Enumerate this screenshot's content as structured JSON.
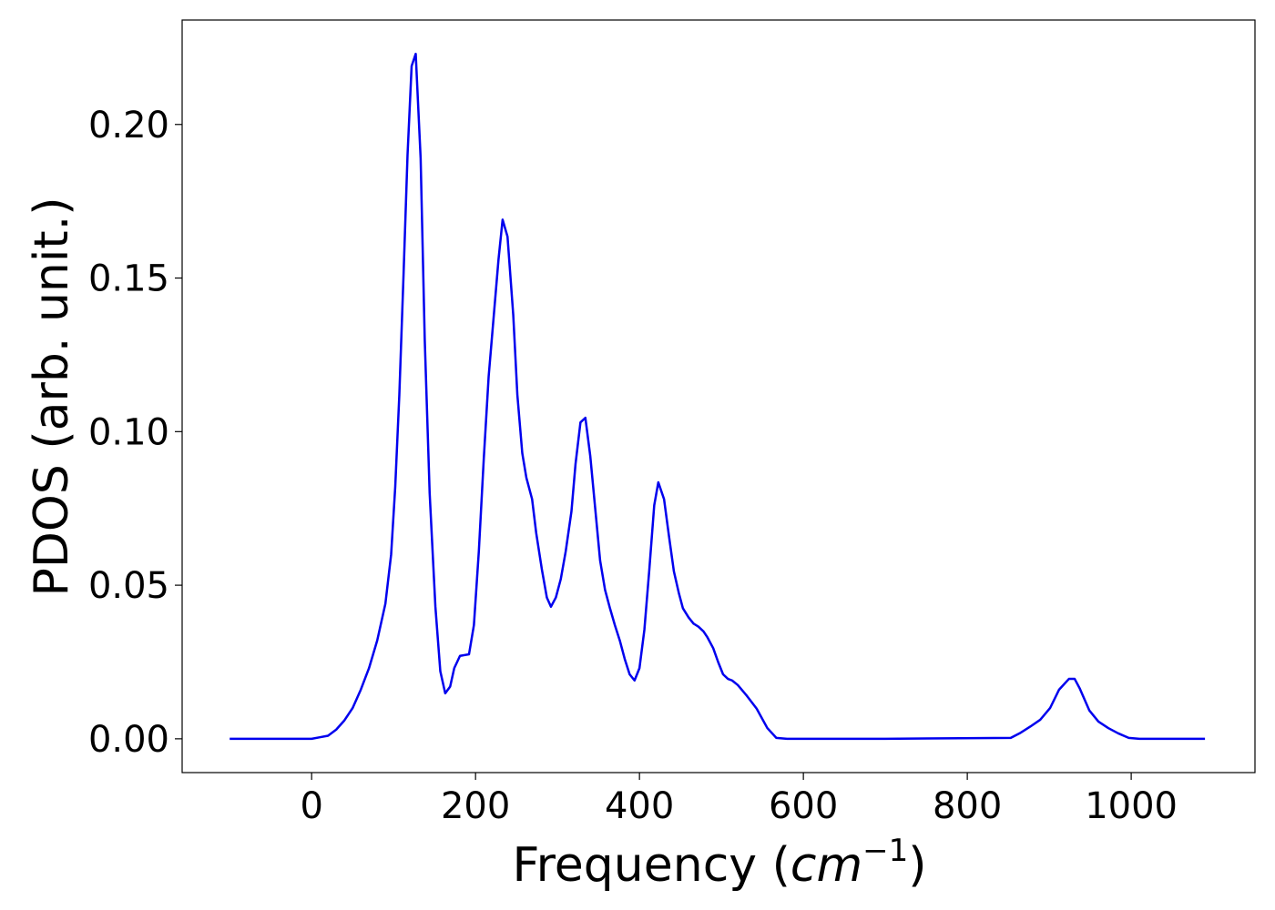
{
  "chart_data": {
    "type": "line",
    "xlabel": [
      "Frequency (",
      "cm",
      "−1",
      ")"
    ],
    "ylabel": "PDOS (arb. unit.)",
    "xlim": [
      -158,
      1151
    ],
    "ylim": [
      -0.011,
      0.234
    ],
    "xticks": [
      0,
      200,
      400,
      600,
      800,
      1000
    ],
    "yticks": [
      {
        "value": 0,
        "label": "0.00"
      },
      {
        "value": 0.05,
        "label": "0.05"
      },
      {
        "value": 0.1,
        "label": "0.10"
      },
      {
        "value": 0.15,
        "label": "0.15"
      },
      {
        "value": 0.2,
        "label": "0.20"
      }
    ],
    "x": [
      -100,
      -50,
      0,
      10,
      20,
      30,
      40,
      50,
      60,
      70,
      80,
      90,
      97,
      102,
      107,
      112,
      117,
      122,
      127,
      133,
      138,
      144,
      151,
      157,
      163,
      169,
      174,
      181,
      192,
      198,
      204,
      210,
      216,
      228,
      233,
      239,
      246,
      251,
      257,
      262,
      269,
      274,
      281,
      287,
      292,
      298,
      304,
      310,
      317,
      322,
      328,
      334,
      340,
      346,
      352,
      358,
      364,
      370,
      376,
      382,
      388,
      394,
      400,
      406,
      412,
      418,
      423,
      430,
      436,
      442,
      448,
      453,
      460,
      466,
      472,
      478,
      483,
      490,
      496,
      502,
      508,
      513,
      520,
      531,
      543,
      556,
      567,
      580,
      700,
      853,
      864,
      877,
      889,
      901,
      912,
      924,
      931,
      937,
      949,
      960,
      972,
      984,
      997,
      1010,
      1090
    ],
    "series": [
      {
        "name": "PDOS",
        "color": "#0000ee",
        "values": [
          0,
          0,
          0,
          0.0005,
          0.001,
          0.003,
          0.006,
          0.01,
          0.016,
          0.023,
          0.032,
          0.044,
          0.06,
          0.082,
          0.112,
          0.15,
          0.19,
          0.219,
          0.223,
          0.189,
          0.13,
          0.08,
          0.043,
          0.022,
          0.0148,
          0.017,
          0.023,
          0.027,
          0.0275,
          0.037,
          0.061,
          0.091,
          0.118,
          0.156,
          0.169,
          0.1635,
          0.138,
          0.112,
          0.093,
          0.085,
          0.078,
          0.067,
          0.055,
          0.046,
          0.043,
          0.046,
          0.052,
          0.061,
          0.074,
          0.0895,
          0.103,
          0.1045,
          0.092,
          0.075,
          0.058,
          0.0485,
          0.0425,
          0.037,
          0.032,
          0.026,
          0.021,
          0.019,
          0.023,
          0.0355,
          0.055,
          0.076,
          0.0835,
          0.078,
          0.066,
          0.0545,
          0.0475,
          0.0425,
          0.0395,
          0.0375,
          0.0365,
          0.035,
          0.033,
          0.0295,
          0.025,
          0.021,
          0.0195,
          0.019,
          0.0175,
          0.014,
          0.0098,
          0.0035,
          0.0003,
          0,
          0,
          0.0003,
          0.0018,
          0.004,
          0.0062,
          0.01,
          0.016,
          0.0195,
          0.0195,
          0.0165,
          0.0092,
          0.0056,
          0.0035,
          0.0018,
          0.0003,
          0,
          0
        ]
      }
    ]
  }
}
